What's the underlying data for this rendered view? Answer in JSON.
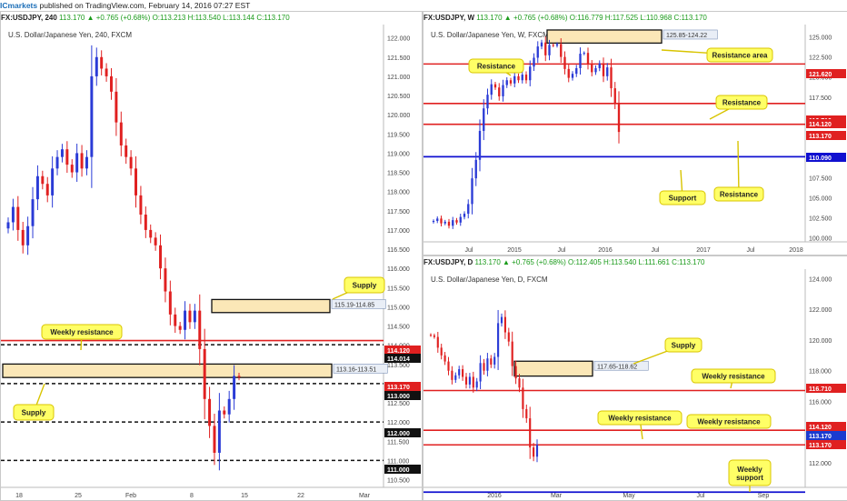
{
  "header": {
    "logo": "ICmarkets",
    "published": "published on TradingView.com, February 14, 2016 07:27 EST"
  },
  "panels": {
    "h4": {
      "symbol": "FX:USDJPY, 240",
      "change": "113.170 ▲ +0.765 (+0.68%)",
      "ohlc": "O:113.213 H:113.540 L:113.144 C:113.170",
      "pair_label": "U.S. Dollar/Japanese Yen, 240, FXCM",
      "x_ticks": [
        "18",
        "25",
        "Feb",
        "8",
        "15",
        "22",
        "Mar"
      ],
      "y_ticks": [
        "122.000",
        "121.500",
        "121.000",
        "120.500",
        "120.000",
        "119.500",
        "119.000",
        "118.500",
        "118.000",
        "117.500",
        "117.000",
        "116.500",
        "116.000",
        "115.500",
        "115.000",
        "114.500",
        "114.000",
        "113.500",
        "113.000",
        "112.500",
        "112.000",
        "111.500",
        "111.000",
        "110.500"
      ],
      "price_tags": [
        {
          "text": "114.120",
          "color": "#e02020"
        },
        {
          "text": "114.014",
          "color": "#111111"
        },
        {
          "text": "113.170",
          "color": "#e02020"
        },
        {
          "text": "113.000",
          "color": "#111111"
        },
        {
          "text": "112.000",
          "color": "#111111"
        },
        {
          "text": "111.000",
          "color": "#111111"
        }
      ],
      "zone_labels": [
        "115.19-114.85",
        "113.16-113.51"
      ],
      "callouts": [
        "Supply",
        "Weekly resistance",
        "Supply"
      ]
    },
    "weekly": {
      "symbol": "FX:USDJPY, W",
      "change": "113.170 ▲ +0.765 (+0.68%)",
      "ohlc": "O:116.779 H:117.525 L:110.968 C:113.170",
      "pair_label": "U.S. Dollar/Japanese Yen, W, FXCM",
      "x_ticks": [
        "Jul",
        "2015",
        "Jul",
        "2016",
        "Jul",
        "2017",
        "Jul",
        "2018"
      ],
      "y_ticks": [
        "125.000",
        "122.500",
        "120.000",
        "117.500",
        "115.000",
        "112.500",
        "110.000",
        "107.500",
        "105.000",
        "102.500",
        "100.000"
      ],
      "price_tags": [
        {
          "text": "121.620",
          "color": "#e02020"
        },
        {
          "text": "116.710",
          "color": "#e02020"
        },
        {
          "text": "114.120",
          "color": "#e02020"
        },
        {
          "text": "113.170",
          "color": "#e02020"
        },
        {
          "text": "110.090",
          "color": "#1010d0"
        }
      ],
      "zone_labels": [
        "125.85-124.22"
      ],
      "callouts": [
        "Resistance",
        "Resistance area",
        "Resistance",
        "Support",
        "Resistance"
      ]
    },
    "daily": {
      "symbol": "FX:USDJPY, D",
      "change": "113.170 ▲ +0.765 (+0.68%)",
      "ohlc": "O:112.405 H:113.540 L:111.661 C:113.170",
      "pair_label": "U.S. Dollar/Japanese Yen, D, FXCM",
      "x_ticks": [
        "2016",
        "Mar",
        "May",
        "Jul",
        "Sep"
      ],
      "y_ticks": [
        "124.000",
        "122.000",
        "120.000",
        "118.000",
        "116.000",
        "114.000",
        "112.000"
      ],
      "price_tags": [
        {
          "text": "116.710",
          "color": "#e02020"
        },
        {
          "text": "114.120",
          "color": "#e02020"
        },
        {
          "text": "113.170",
          "color": "#1a3bd0"
        },
        {
          "text": "113.170",
          "color": "#e02020"
        }
      ],
      "zone_labels": [
        "117.65-118.62"
      ],
      "callouts": [
        "Supply",
        "Weekly resistance",
        "Weekly resistance",
        "Weekly resistance",
        "Weekly support"
      ]
    }
  },
  "colors": {
    "up": "#2a3bd6",
    "down": "#e02020",
    "resistance": "#e02020",
    "support": "#1010d0",
    "zone_fill": "#fbe7b7",
    "callout_fill": "#ffff66"
  },
  "chart_data": [
    {
      "type": "candlestick",
      "title": "U.S. Dollar/Japanese Yen, 240, FXCM",
      "ylim": [
        110.3,
        122.3
      ],
      "closes": [
        117.2,
        117.6,
        117.0,
        116.6,
        117.1,
        117.8,
        118.4,
        118.2,
        117.9,
        118.6,
        118.9,
        119.1,
        118.7,
        118.5,
        119.0,
        118.6,
        118.9,
        121.0,
        121.5,
        121.2,
        121.0,
        120.6,
        119.8,
        119.2,
        118.9,
        118.6,
        117.9,
        117.4,
        117.0,
        116.8,
        116.6,
        116.0,
        115.4,
        114.8,
        114.5,
        114.4,
        114.9,
        114.6,
        114.9,
        113.9,
        112.6,
        111.9,
        111.2,
        112.3,
        112.2,
        112.6,
        113.2,
        113.17
      ],
      "levels": [
        {
          "price": 114.12,
          "style": "resistance"
        },
        {
          "price": 114.014,
          "style": "dashed"
        },
        {
          "price": 113.0,
          "style": "dashed"
        },
        {
          "price": 112.0,
          "style": "dashed"
        },
        {
          "price": 111.0,
          "style": "dashed"
        }
      ],
      "zones": [
        [
          114.85,
          115.19
        ],
        [
          113.16,
          113.51
        ]
      ]
    },
    {
      "type": "candlestick",
      "title": "U.S. Dollar/Japanese Yen, W, FXCM",
      "ylim": [
        99.5,
        126.3
      ],
      "closes": [
        102.1,
        102.4,
        101.8,
        102.0,
        101.5,
        102.2,
        101.9,
        102.6,
        103.0,
        104.2,
        107.4,
        109.7,
        113.3,
        116.1,
        117.8,
        119.1,
        118.7,
        117.6,
        119.0,
        119.6,
        119.2,
        120.1,
        119.6,
        120.3,
        119.6,
        121.3,
        122.4,
        123.8,
        124.3,
        122.7,
        124.0,
        123.9,
        124.1,
        122.5,
        121.0,
        119.9,
        120.4,
        121.1,
        122.9,
        123.0,
        121.6,
        120.6,
        121.1,
        121.7,
        120.1,
        121.2,
        118.6,
        116.8,
        113.17
      ],
      "levels": [
        {
          "price": 121.62,
          "style": "resistance"
        },
        {
          "price": 116.71,
          "style": "resistance"
        },
        {
          "price": 114.12,
          "style": "resistance"
        },
        {
          "price": 110.09,
          "style": "support"
        }
      ],
      "zones": [
        [
          124.22,
          125.85
        ]
      ]
    },
    {
      "type": "candlestick",
      "title": "U.S. Dollar/Japanese Yen, D, FXCM",
      "ylim": [
        110.4,
        124.5
      ],
      "closes": [
        120.3,
        120.2,
        119.5,
        119.0,
        118.6,
        118.0,
        117.4,
        117.7,
        118.1,
        117.6,
        117.1,
        117.6,
        116.9,
        117.3,
        118.5,
        118.0,
        118.8,
        118.4,
        118.9,
        121.1,
        121.5,
        120.5,
        119.9,
        118.3,
        117.5,
        116.9,
        115.5,
        114.9,
        113.0,
        112.4,
        113.17
      ],
      "levels": [
        {
          "price": 116.71,
          "style": "resistance"
        },
        {
          "price": 114.12,
          "style": "resistance"
        },
        {
          "price": 113.17,
          "style": "resistance"
        },
        {
          "price": 110.09,
          "style": "support"
        }
      ],
      "zones": [
        [
          117.65,
          118.62
        ]
      ]
    }
  ]
}
